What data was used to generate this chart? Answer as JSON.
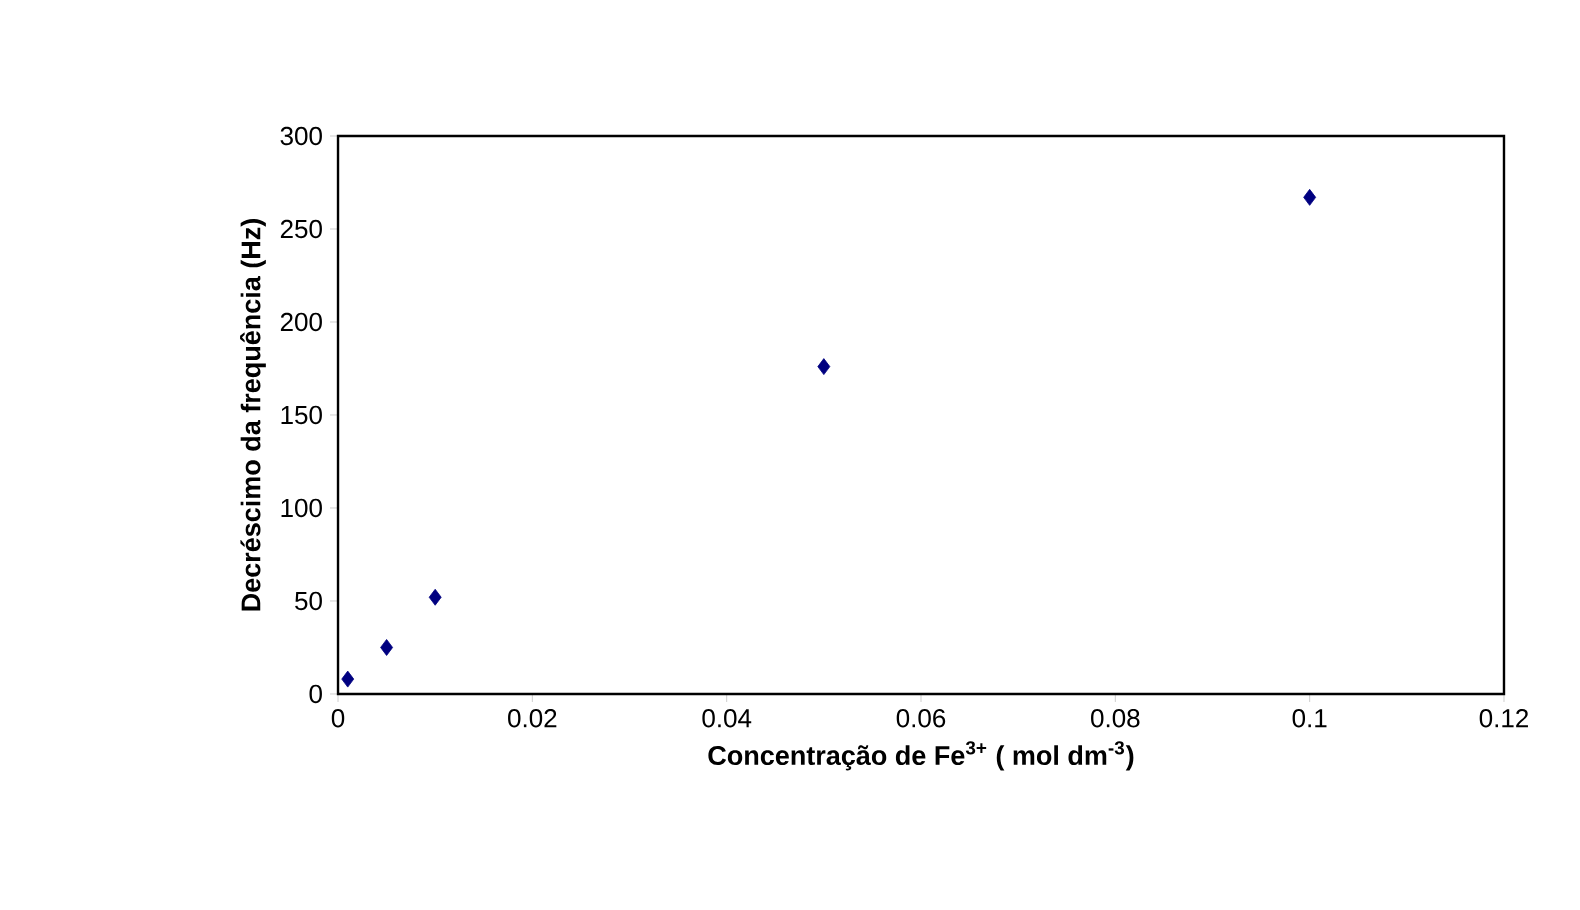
{
  "chart_data": {
    "type": "scatter",
    "xlabel": "Concentração de Fe$^{3+}$ ( mol dm$^{-3}$)",
    "ylabel": "Decréscimo da frequência (Hz)",
    "x": [
      0.001,
      0.005,
      0.01,
      0.05,
      0.1
    ],
    "series": [
      {
        "color": "#000080",
        "values": [
          8,
          25,
          52,
          176,
          267
        ]
      }
    ],
    "xlim": [
      0,
      0.12
    ],
    "xticks": [
      0,
      0.02,
      0.04,
      0.06,
      0.08,
      0.1,
      0.12
    ],
    "ylim": [
      0,
      300
    ],
    "yticks": [
      0,
      50,
      100,
      150,
      200,
      250,
      300
    ],
    "marker": "diamond"
  }
}
